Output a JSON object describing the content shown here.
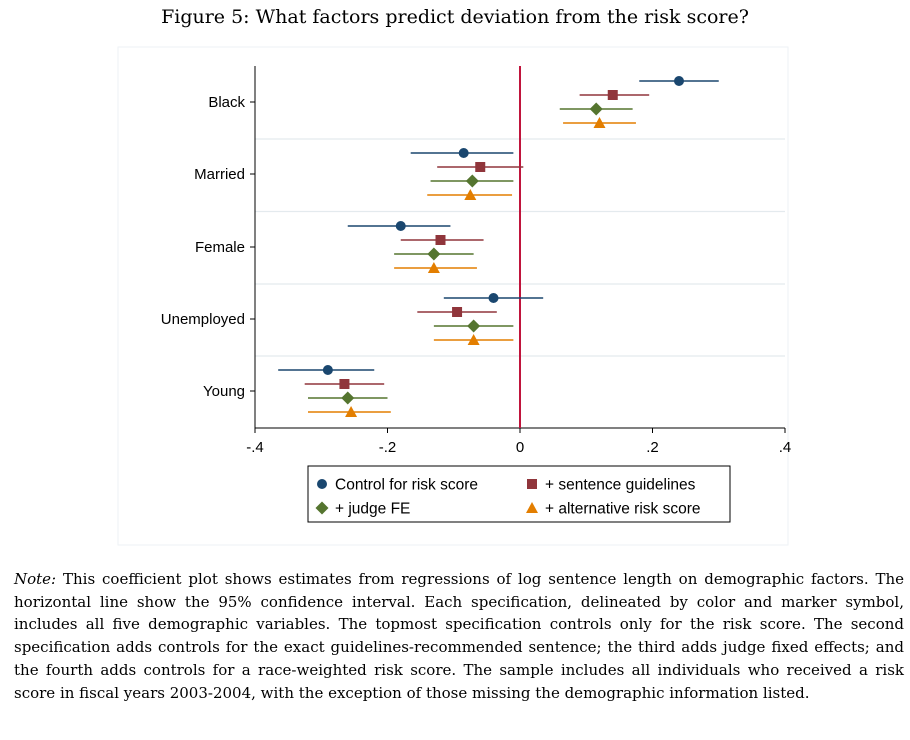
{
  "figure": {
    "title": "Figure 5: What factors predict deviation from the risk score?"
  },
  "chart_data": {
    "type": "scatter",
    "subtype": "coefficient-plot",
    "xlim": [
      -0.4,
      0.4
    ],
    "xticks": [
      -0.4,
      -0.2,
      0,
      0.2,
      0.4
    ],
    "xtick_labels": [
      "-.4",
      "-.2",
      "0",
      ".2",
      ".4"
    ],
    "reference_line_x": 0,
    "reference_line_color": "#c0143c",
    "grid": true,
    "legend_position": "bottom-center",
    "categories": [
      "Black",
      "Married",
      "Female",
      "Unemployed",
      "Young"
    ],
    "series": [
      {
        "name": "Control for risk score",
        "marker": "circle",
        "color": "#1a476f",
        "estimates": [
          0.24,
          -0.085,
          -0.18,
          -0.04,
          -0.29
        ],
        "ci_low": [
          0.18,
          -0.165,
          -0.26,
          -0.115,
          -0.365
        ],
        "ci_high": [
          0.3,
          -0.01,
          -0.105,
          0.035,
          -0.22
        ]
      },
      {
        "name": "+ sentence guidelines",
        "marker": "square",
        "color": "#90353b",
        "estimates": [
          0.14,
          -0.06,
          -0.12,
          -0.095,
          -0.265
        ],
        "ci_low": [
          0.09,
          -0.125,
          -0.18,
          -0.155,
          -0.325
        ],
        "ci_high": [
          0.195,
          0.005,
          -0.055,
          -0.035,
          -0.205
        ]
      },
      {
        "name": "+ judge FE",
        "marker": "diamond",
        "color": "#55752f",
        "estimates": [
          0.115,
          -0.072,
          -0.13,
          -0.07,
          -0.26
        ],
        "ci_low": [
          0.06,
          -0.135,
          -0.19,
          -0.13,
          -0.32
        ],
        "ci_high": [
          0.17,
          -0.01,
          -0.07,
          -0.01,
          -0.2
        ]
      },
      {
        "name": "+ alternative risk score",
        "marker": "triangle",
        "color": "#e37e00",
        "estimates": [
          0.12,
          -0.075,
          -0.13,
          -0.07,
          -0.255
        ],
        "ci_low": [
          0.065,
          -0.14,
          -0.19,
          -0.13,
          -0.32
        ],
        "ci_high": [
          0.175,
          -0.012,
          -0.065,
          -0.01,
          -0.195
        ]
      }
    ]
  },
  "note": {
    "label": "Note:",
    "text": " This coefficient plot shows estimates from regressions of log sentence length on demographic factors. The horizontal line show the 95% confidence interval. Each specification, delineated by color and marker symbol, includes all five demographic variables. The topmost specification controls only for the risk score. The second specification adds controls for the exact guidelines-recommended sentence; the third adds judge fixed effects; and the fourth adds controls for a race-weighted risk score. The sample includes all individuals who received a risk score in fiscal years 2003-2004, with the exception of those missing the demographic information listed."
  }
}
